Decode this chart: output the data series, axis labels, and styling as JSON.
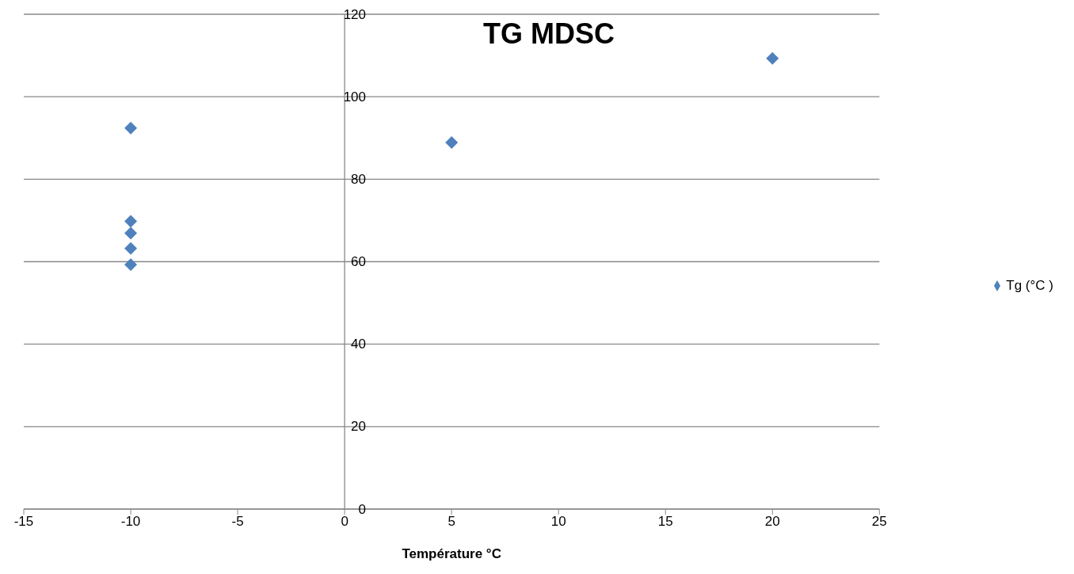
{
  "chart_data": {
    "type": "scatter",
    "title": "TG MDSC",
    "xlabel": "Température °C",
    "series": [
      {
        "name": "Tg (°C )",
        "color": "#4f81bd",
        "x": [
          -10,
          -10,
          -10,
          -10,
          -10,
          5,
          20
        ],
        "values": [
          92.4,
          69.8,
          66.9,
          63.2,
          59.3,
          88.9,
          109.3
        ]
      }
    ],
    "xlim": [
      -15,
      25
    ],
    "xticks": [
      -15,
      -10,
      -5,
      0,
      5,
      10,
      15,
      20,
      25
    ],
    "ylim": [
      0,
      120
    ],
    "yticks": [
      0,
      20,
      40,
      60,
      80,
      100,
      120
    ],
    "grid": "y",
    "legend": "right",
    "marker": "diamond"
  }
}
